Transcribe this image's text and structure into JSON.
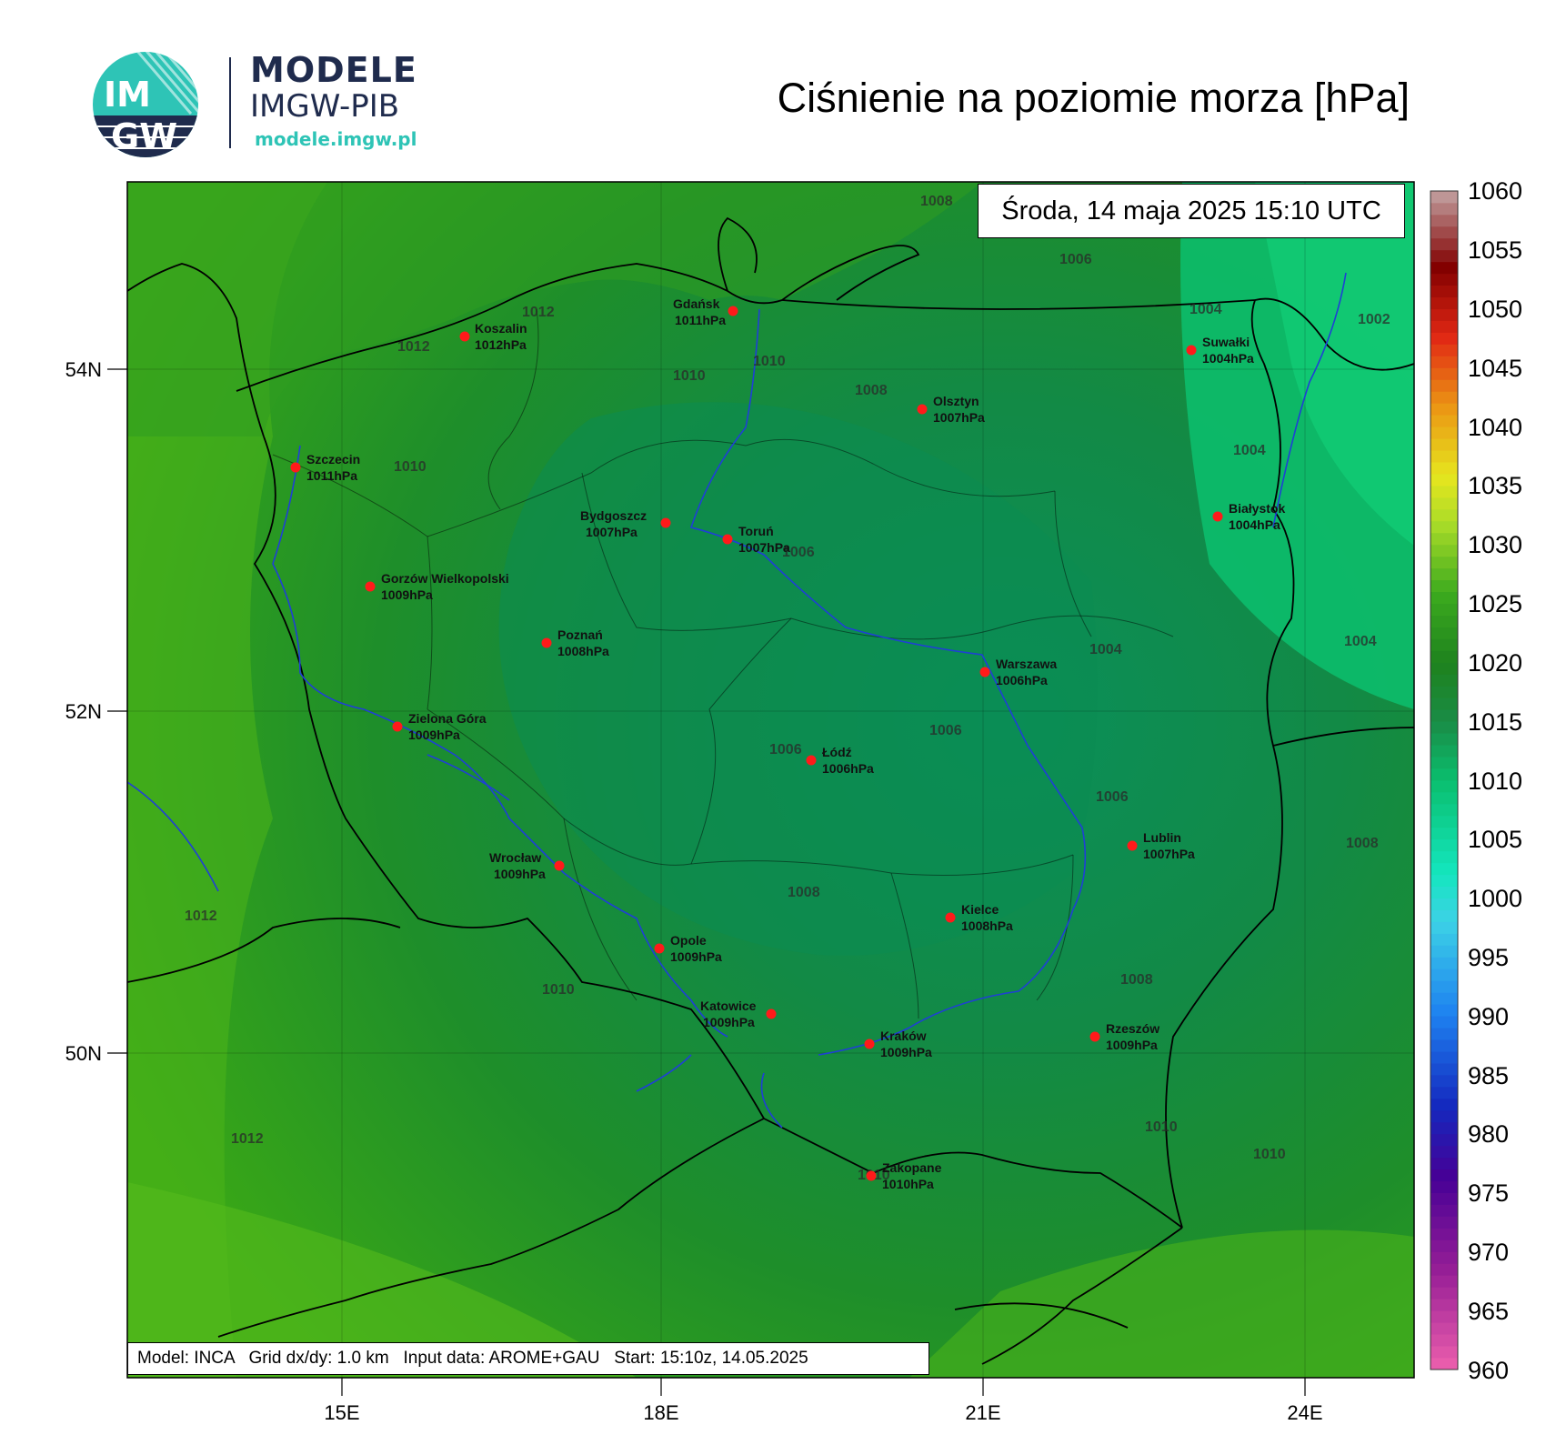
{
  "header": {
    "brand_title": "MODELE",
    "brand_subtitle": "IMGW-PIB",
    "brand_url": "modele.imgw.pl",
    "logo_text_top": "IM",
    "logo_text_bottom": "GW",
    "title": "Ciśnienie na poziomie morza [hPa]"
  },
  "map": {
    "datetime": "Środa, 14 maja 2025 15:10 UTC",
    "footer": "Model: INCA   Grid dx/dy: 1.0 km   Input data: AROME+GAU   Start: 15:10z, 14.05.2025",
    "lat_labels": [
      "54N",
      "52N",
      "50N"
    ],
    "lon_labels": [
      "15E",
      "18E",
      "21E",
      "24E"
    ],
    "cities": [
      {
        "name": "Gdańsk",
        "value": "1011hPa"
      },
      {
        "name": "Koszalin",
        "value": "1012hPa"
      },
      {
        "name": "Suwałki",
        "value": "1004hPa"
      },
      {
        "name": "Olsztyn",
        "value": "1007hPa"
      },
      {
        "name": "Szczecin",
        "value": "1011hPa"
      },
      {
        "name": "Białystok",
        "value": "1004hPa"
      },
      {
        "name": "Bydgoszcz",
        "value": "1007hPa"
      },
      {
        "name": "Toruń",
        "value": "1007hPa"
      },
      {
        "name": "Gorzów Wielkopolski",
        "value": "1009hPa"
      },
      {
        "name": "Poznań",
        "value": "1008hPa"
      },
      {
        "name": "Warszawa",
        "value": "1006hPa"
      },
      {
        "name": "Zielona Góra",
        "value": "1009hPa"
      },
      {
        "name": "Łódź",
        "value": "1006hPa"
      },
      {
        "name": "Lublin",
        "value": "1007hPa"
      },
      {
        "name": "Wrocław",
        "value": "1009hPa"
      },
      {
        "name": "Kielce",
        "value": "1008hPa"
      },
      {
        "name": "Opole",
        "value": "1009hPa"
      },
      {
        "name": "Katowice",
        "value": "1009hPa"
      },
      {
        "name": "Rzeszów",
        "value": "1009hPa"
      },
      {
        "name": "Kraków",
        "value": "1009hPa"
      },
      {
        "name": "Zakopane",
        "value": "1010hPa"
      }
    ],
    "isobar_labels": [
      "1008",
      "1006",
      "1004",
      "1002",
      "1012",
      "1012",
      "1010",
      "1010",
      "1008",
      "1010",
      "1004",
      "1006",
      "1004",
      "1004",
      "1006",
      "1006",
      "1006",
      "1008",
      "1012",
      "1008",
      "1010",
      "1012",
      "1010",
      "1010",
      "1010",
      "1008"
    ],
    "city_marker_color": "#ff1a1a",
    "river_color": "#1f3fd6",
    "border_color": "#000000"
  },
  "colorbar": {
    "labels": [
      "1060",
      "1055",
      "1050",
      "1045",
      "1040",
      "1035",
      "1030",
      "1025",
      "1020",
      "1015",
      "1010",
      "1005",
      "1000",
      "995",
      "990",
      "985",
      "980",
      "975",
      "970",
      "965",
      "960"
    ]
  }
}
